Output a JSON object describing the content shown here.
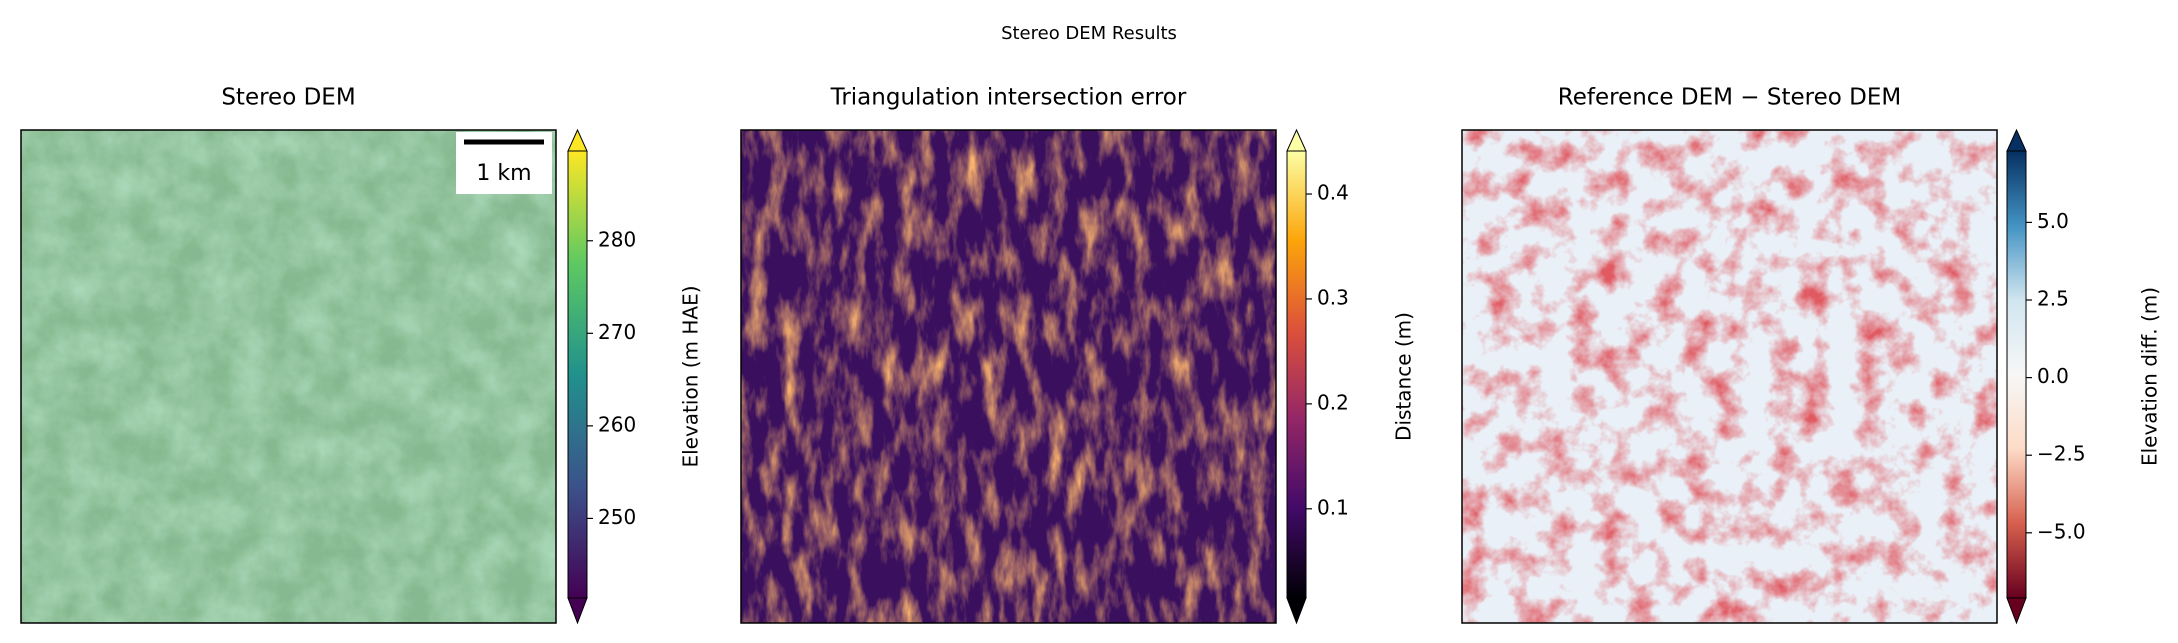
{
  "chart_data": {
    "type": "image-panels",
    "title": "Stereo DEM Results",
    "panels": [
      {
        "title": "Stereo DEM",
        "colorbar_label": "Elevation (m HAE)",
        "scale_bar": "1 km",
        "clim": [
          241.4,
          289.7
        ],
        "ticks": [
          250,
          260,
          270,
          280
        ],
        "colors": [
          "#440154",
          "#3b528b",
          "#21918c",
          "#5ec962",
          "#fde725"
        ],
        "extend": "both"
      },
      {
        "title": "Triangulation intersection error",
        "colorbar_label": "Distance (m)",
        "clim": [
          0.015,
          0.441
        ],
        "ticks": [
          0.1,
          0.2,
          0.3,
          0.4
        ],
        "colors": [
          "#000004",
          "#420a68",
          "#932667",
          "#dd513a",
          "#fca50a",
          "#fcffa4"
        ],
        "extend": "both"
      },
      {
        "title": "Reference DEM − Stereo DEM",
        "colorbar_label": "Elevation diff. (m)",
        "clim": [
          -7.1,
          7.3
        ],
        "ticks": [
          {
            "value": -5,
            "label": "−5.0"
          },
          {
            "value": -2.5,
            "label": "−2.5"
          },
          {
            "value": 0,
            "label": "0.0"
          },
          {
            "value": 2.5,
            "label": "2.5"
          },
          {
            "value": 5,
            "label": "5.0"
          }
        ],
        "colors": [
          "#67001f",
          "#d6604d",
          "#fddbc7",
          "#f7f7f7",
          "#d1e5f0",
          "#4393c3",
          "#053061"
        ],
        "extend": "both"
      }
    ]
  }
}
